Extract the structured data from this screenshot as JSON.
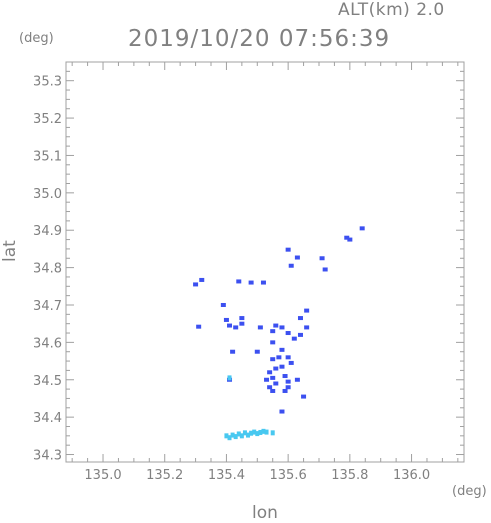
{
  "header": {
    "altitude_label": "ALT(km) 2.0",
    "timestamp": "2019/10/20 07:56:39"
  },
  "chart_data": {
    "type": "scatter",
    "title": "2019/10/20 07:56:39",
    "xlabel": "lon",
    "ylabel": "lat",
    "x_unit": "(deg)",
    "y_unit": "(deg)",
    "xlim": [
      134.88,
      136.17
    ],
    "ylim": [
      34.28,
      35.35
    ],
    "x_ticks": [
      135.0,
      135.2,
      135.4,
      135.6,
      135.8,
      136.0
    ],
    "y_ticks": [
      34.3,
      34.4,
      34.5,
      34.6,
      34.7,
      34.8,
      34.9,
      35.0,
      35.1,
      35.2,
      35.3
    ],
    "grid": false,
    "colors": {
      "strong": "#3c50f0",
      "weak": "#48c8f0",
      "axis": "#a0a0a0"
    },
    "series": [
      {
        "color": "#3c50f0",
        "points": [
          [
            135.84,
            34.905
          ],
          [
            135.8,
            34.875
          ],
          [
            135.79,
            34.88
          ],
          [
            135.6,
            34.848
          ],
          [
            135.63,
            34.827
          ],
          [
            135.71,
            34.825
          ],
          [
            135.61,
            34.805
          ],
          [
            135.72,
            34.795
          ],
          [
            135.3,
            34.755
          ],
          [
            135.32,
            34.767
          ],
          [
            135.44,
            34.763
          ],
          [
            135.48,
            34.76
          ],
          [
            135.52,
            34.76
          ],
          [
            135.39,
            34.7
          ],
          [
            135.31,
            34.642
          ],
          [
            135.4,
            34.66
          ],
          [
            135.41,
            34.645
          ],
          [
            135.43,
            34.64
          ],
          [
            135.45,
            34.65
          ],
          [
            135.45,
            34.665
          ],
          [
            135.51,
            34.64
          ],
          [
            135.55,
            34.63
          ],
          [
            135.56,
            34.645
          ],
          [
            135.58,
            34.64
          ],
          [
            135.6,
            34.625
          ],
          [
            135.62,
            34.61
          ],
          [
            135.66,
            34.685
          ],
          [
            135.64,
            34.665
          ],
          [
            135.66,
            34.64
          ],
          [
            135.64,
            34.62
          ],
          [
            135.42,
            34.575
          ],
          [
            135.5,
            34.575
          ],
          [
            135.55,
            34.6
          ],
          [
            135.58,
            34.58
          ],
          [
            135.57,
            34.56
          ],
          [
            135.55,
            34.555
          ],
          [
            135.6,
            34.56
          ],
          [
            135.61,
            34.545
          ],
          [
            135.58,
            34.535
          ],
          [
            135.56,
            34.53
          ],
          [
            135.54,
            34.52
          ],
          [
            135.55,
            34.505
          ],
          [
            135.53,
            34.5
          ],
          [
            135.56,
            34.49
          ],
          [
            135.54,
            34.48
          ],
          [
            135.55,
            34.47
          ],
          [
            135.59,
            34.51
          ],
          [
            135.6,
            34.495
          ],
          [
            135.63,
            34.5
          ],
          [
            135.6,
            34.48
          ],
          [
            135.59,
            34.47
          ],
          [
            135.65,
            34.455
          ],
          [
            135.58,
            34.415
          ],
          [
            135.41,
            34.5
          ]
        ]
      },
      {
        "color": "#48c8f0",
        "points": [
          [
            135.4,
            34.35
          ],
          [
            135.41,
            34.345
          ],
          [
            135.42,
            34.352
          ],
          [
            135.43,
            34.348
          ],
          [
            135.44,
            34.355
          ],
          [
            135.45,
            34.35
          ],
          [
            135.46,
            34.358
          ],
          [
            135.47,
            34.352
          ],
          [
            135.48,
            34.357
          ],
          [
            135.49,
            34.36
          ],
          [
            135.5,
            34.356
          ],
          [
            135.51,
            34.359
          ],
          [
            135.52,
            34.362
          ],
          [
            135.53,
            34.36
          ],
          [
            135.55,
            34.358
          ],
          [
            135.41,
            34.505
          ]
        ]
      }
    ]
  }
}
